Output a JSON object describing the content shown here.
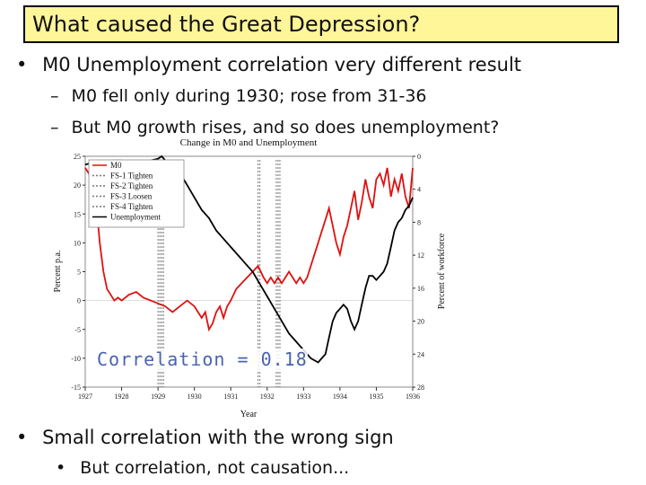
{
  "slide": {
    "title": "What caused the Great Depression?",
    "bullets": [
      {
        "marker": "•",
        "text": "M0 Unemployment correlation very different result"
      },
      {
        "marker": "•",
        "text": "Small correlation with the wrong sign"
      }
    ],
    "subbullets": [
      {
        "marker": "–",
        "text": "M0 fell only during 1930; rose from 31-36"
      },
      {
        "marker": "–",
        "text": "But M0 growth rises, and so does unemployment?"
      },
      {
        "marker": "•",
        "text": "But correlation, not causation..."
      }
    ],
    "correlation_label": "Correlation = 0.18"
  },
  "colors": {
    "title_bg": "#fff599",
    "m0": "#e01010",
    "unemployment": "#000000",
    "markers": "#777777",
    "correlation": "#4a63ad"
  },
  "chart_data": {
    "type": "line",
    "title": "Change in M0 and Unemployment",
    "xlabel": "Year",
    "ylabel": "Percent p.a.",
    "y2label": "Percent of workforce",
    "xlim": [
      1927,
      1936
    ],
    "ylim": [
      -15,
      25
    ],
    "y2lim": [
      28,
      0
    ],
    "x_ticks": [
      "1927",
      "1928",
      "1929",
      "1930",
      "1931",
      "1932",
      "1933",
      "1934",
      "1935",
      "1936"
    ],
    "y_ticks": [
      "25",
      "20",
      "15",
      "10",
      "5",
      "0",
      "-5",
      "-10",
      "-15"
    ],
    "y2_ticks": [
      "0",
      "4",
      "8",
      "12",
      "16",
      "20",
      "24",
      "28"
    ],
    "legend": [
      "M0",
      "FS-1 Tighten",
      "FS-2 Tighten",
      "FS-3 Loosen",
      "FS-4 Tighten",
      "Unemployment"
    ],
    "legend_placement": "top-left",
    "markers_x": [
      1929.0,
      1929.05,
      1929.1,
      1929.15,
      1931.75,
      1931.8,
      1932.25,
      1932.3,
      1932.35
    ],
    "series": [
      {
        "name": "M0",
        "axis": "left",
        "points": [
          [
            1927.0,
            23
          ],
          [
            1927.1,
            22
          ],
          [
            1927.2,
            20
          ],
          [
            1927.3,
            17
          ],
          [
            1927.4,
            10
          ],
          [
            1927.5,
            5
          ],
          [
            1927.6,
            2
          ],
          [
            1927.7,
            1
          ],
          [
            1927.8,
            0
          ],
          [
            1927.9,
            0.5
          ],
          [
            1928.0,
            0
          ],
          [
            1928.2,
            1
          ],
          [
            1928.4,
            1.5
          ],
          [
            1928.6,
            0.5
          ],
          [
            1928.8,
            0
          ],
          [
            1929.0,
            -0.5
          ],
          [
            1929.2,
            -1
          ],
          [
            1929.4,
            -2
          ],
          [
            1929.6,
            -1
          ],
          [
            1929.8,
            0
          ],
          [
            1930.0,
            -1
          ],
          [
            1930.1,
            -2
          ],
          [
            1930.2,
            -3
          ],
          [
            1930.3,
            -2
          ],
          [
            1930.4,
            -5
          ],
          [
            1930.5,
            -4
          ],
          [
            1930.6,
            -2
          ],
          [
            1930.7,
            -1
          ],
          [
            1930.8,
            -3
          ],
          [
            1930.9,
            -1
          ],
          [
            1931.0,
            0
          ],
          [
            1931.15,
            2
          ],
          [
            1931.3,
            3
          ],
          [
            1931.45,
            4
          ],
          [
            1931.6,
            5
          ],
          [
            1931.75,
            6
          ],
          [
            1931.9,
            4
          ],
          [
            1932.0,
            3
          ],
          [
            1932.1,
            4
          ],
          [
            1932.2,
            3
          ],
          [
            1932.3,
            4
          ],
          [
            1932.4,
            3
          ],
          [
            1932.5,
            4
          ],
          [
            1932.6,
            5
          ],
          [
            1932.7,
            4
          ],
          [
            1932.8,
            3
          ],
          [
            1932.9,
            4
          ],
          [
            1933.0,
            3
          ],
          [
            1933.1,
            4
          ],
          [
            1933.2,
            6
          ],
          [
            1933.3,
            8
          ],
          [
            1933.4,
            10
          ],
          [
            1933.5,
            12
          ],
          [
            1933.6,
            14
          ],
          [
            1933.7,
            16
          ],
          [
            1933.8,
            13
          ],
          [
            1933.9,
            10
          ],
          [
            1934.0,
            8
          ],
          [
            1934.1,
            11
          ],
          [
            1934.2,
            13
          ],
          [
            1934.3,
            16
          ],
          [
            1934.4,
            19
          ],
          [
            1934.5,
            14
          ],
          [
            1934.6,
            17
          ],
          [
            1934.7,
            21
          ],
          [
            1934.8,
            18
          ],
          [
            1934.9,
            16
          ],
          [
            1935.0,
            21
          ],
          [
            1935.1,
            22
          ],
          [
            1935.2,
            20
          ],
          [
            1935.3,
            23
          ],
          [
            1935.4,
            18
          ],
          [
            1935.5,
            21
          ],
          [
            1935.6,
            19
          ],
          [
            1935.7,
            22
          ],
          [
            1935.8,
            18
          ],
          [
            1935.9,
            16
          ],
          [
            1936.0,
            23
          ]
        ]
      },
      {
        "name": "Unemployment",
        "axis": "right",
        "points": [
          [
            1927.0,
            1.0
          ],
          [
            1927.2,
            0.8
          ],
          [
            1927.4,
            0.8
          ],
          [
            1927.6,
            0.6
          ],
          [
            1927.8,
            0.5
          ],
          [
            1928.0,
            0.5
          ],
          [
            1928.2,
            0.8
          ],
          [
            1928.4,
            0.6
          ],
          [
            1928.6,
            0.8
          ],
          [
            1928.8,
            0.5
          ],
          [
            1929.0,
            0.3
          ],
          [
            1929.1,
            0.0
          ],
          [
            1929.2,
            0.5
          ],
          [
            1929.4,
            1.0
          ],
          [
            1929.6,
            2.0
          ],
          [
            1929.8,
            3.5
          ],
          [
            1930.0,
            5.0
          ],
          [
            1930.2,
            6.5
          ],
          [
            1930.4,
            7.5
          ],
          [
            1930.6,
            9.0
          ],
          [
            1930.8,
            10.0
          ],
          [
            1931.0,
            11.0
          ],
          [
            1931.2,
            12.0
          ],
          [
            1931.4,
            13.0
          ],
          [
            1931.6,
            14.0
          ],
          [
            1931.8,
            15.5
          ],
          [
            1932.0,
            17.0
          ],
          [
            1932.2,
            18.5
          ],
          [
            1932.4,
            20.0
          ],
          [
            1932.6,
            21.5
          ],
          [
            1932.8,
            22.5
          ],
          [
            1933.0,
            23.5
          ],
          [
            1933.2,
            24.5
          ],
          [
            1933.4,
            25.0
          ],
          [
            1933.5,
            24.5
          ],
          [
            1933.6,
            24.0
          ],
          [
            1933.7,
            22.0
          ],
          [
            1933.8,
            20.0
          ],
          [
            1933.9,
            19.0
          ],
          [
            1934.0,
            18.5
          ],
          [
            1934.1,
            18.0
          ],
          [
            1934.2,
            18.5
          ],
          [
            1934.3,
            20.0
          ],
          [
            1934.4,
            21.0
          ],
          [
            1934.5,
            20.0
          ],
          [
            1934.6,
            18.0
          ],
          [
            1934.7,
            16.0
          ],
          [
            1934.8,
            14.5
          ],
          [
            1934.9,
            14.5
          ],
          [
            1935.0,
            15.0
          ],
          [
            1935.1,
            14.5
          ],
          [
            1935.2,
            14.0
          ],
          [
            1935.3,
            13.0
          ],
          [
            1935.4,
            11.0
          ],
          [
            1935.5,
            9.0
          ],
          [
            1935.6,
            8.0
          ],
          [
            1935.7,
            7.5
          ],
          [
            1935.8,
            6.5
          ],
          [
            1935.9,
            6.0
          ],
          [
            1936.0,
            5.0
          ]
        ]
      }
    ]
  }
}
